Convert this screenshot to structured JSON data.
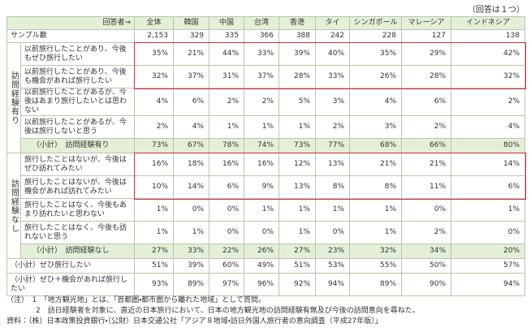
{
  "top_note": "（回答は１つ）",
  "table": {
    "header": {
      "label": "回答者→",
      "columns": [
        "全体",
        "韓国",
        "中国",
        "台湾",
        "香港",
        "タイ",
        "シンガポール",
        "マレーシア",
        "インドネシア"
      ]
    },
    "sample": {
      "label": "サンプル数",
      "values": [
        "2,153",
        "329",
        "335",
        "366",
        "388",
        "242",
        "228",
        "127",
        "138"
      ]
    },
    "groups": [
      {
        "label": "訪問経験有り",
        "rows": [
          {
            "label": "以前旅行したことがあり、今後もぜひ旅行したい",
            "values": [
              "35%",
              "21%",
              "44%",
              "33%",
              "39%",
              "40%",
              "35%",
              "29%",
              "42%"
            ]
          },
          {
            "label": "以前旅行したことがあり、今後も機会があれば旅行したい",
            "values": [
              "32%",
              "37%",
              "31%",
              "37%",
              "28%",
              "33%",
              "26%",
              "28%",
              "32%"
            ]
          },
          {
            "label": "以前旅行したことがあるが、今後はあまり旅行したいとは思わない",
            "values": [
              "4%",
              "6%",
              "2%",
              "2%",
              "5%",
              "3%",
              "4%",
              "6%",
              "2%"
            ]
          },
          {
            "label": "以前旅行したことがあるが、今後は旅行しないと思う",
            "values": [
              "2%",
              "4%",
              "1%",
              "1%",
              "1%",
              "2%",
              "3%",
              "2%",
              "4%"
            ]
          }
        ],
        "subtotal": {
          "label": "（小計）　訪問経験有り",
          "values": [
            "73%",
            "67%",
            "78%",
            "74%",
            "73%",
            "77%",
            "68%",
            "66%",
            "80%"
          ]
        }
      },
      {
        "label": "訪問経験なし",
        "rows": [
          {
            "label": "旅行したことはないが、今後はぜひ訪れてみたい",
            "values": [
              "16%",
              "18%",
              "16%",
              "16%",
              "12%",
              "13%",
              "21%",
              "21%",
              "14%"
            ]
          },
          {
            "label": "旅行したことはないが、今後は機会があれば訪れてみたい",
            "values": [
              "10%",
              "14%",
              "6%",
              "9%",
              "13%",
              "8%",
              "8%",
              "11%",
              "6%"
            ]
          },
          {
            "label": "旅行したことはなく、今後もあまり訪れたいと思わない",
            "values": [
              "1%",
              "0%",
              "0%",
              "1%",
              "1%",
              "1%",
              "1%",
              "0%",
              "1%"
            ]
          },
          {
            "label": "旅行したことはなく、今後も訪れないと思う",
            "values": [
              "1%",
              "1%",
              "0%",
              "0%",
              "1%",
              "0%",
              "1%",
              "2%",
              "0%"
            ]
          }
        ],
        "subtotal": {
          "label": "（小計）　訪問経験なし",
          "values": [
            "27%",
            "33%",
            "22%",
            "26%",
            "27%",
            "23%",
            "32%",
            "34%",
            "20%"
          ]
        }
      }
    ],
    "totals": [
      {
        "label": "（小計）ぜひ旅行したい",
        "values": [
          "51%",
          "39%",
          "60%",
          "49%",
          "51%",
          "53%",
          "55%",
          "50%",
          "57%"
        ]
      },
      {
        "label": "（小計）ぜひ＋機会があれば旅行したい",
        "values": [
          "93%",
          "89%",
          "97%",
          "96%",
          "92%",
          "94%",
          "89%",
          "90%",
          "94%"
        ]
      }
    ]
  },
  "notes": [
    "（注）　1　「地方観光地」とは、「首都圏・都市圏から離れた地域」として質問。",
    "　　　　2　訪日経験者を対象に、直近の日本旅行において、日本の地方観光地の訪問経験有無及び今後の訪問意向を尋ねた。",
    "資料：（株）日本政策投資銀行・（公財）日本交通公社「アジア８地域・訪日外国人旅行者の意向調査（平成27年版）」"
  ]
}
